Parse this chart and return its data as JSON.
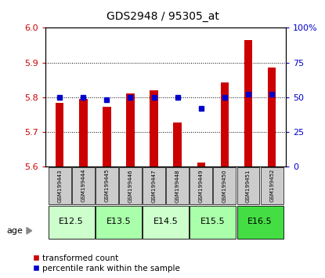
{
  "title": "GDS2948 / 95305_at",
  "samples": [
    "GSM199443",
    "GSM199444",
    "GSM199445",
    "GSM199446",
    "GSM199447",
    "GSM199448",
    "GSM199449",
    "GSM199450",
    "GSM199451",
    "GSM199452"
  ],
  "transformed_counts": [
    5.785,
    5.795,
    5.772,
    5.81,
    5.82,
    5.728,
    5.612,
    5.843,
    5.965,
    5.886
  ],
  "percentile_ranks": [
    50,
    50,
    48,
    50,
    50,
    50,
    42,
    50,
    52,
    52
  ],
  "age_groups": [
    {
      "label": "E12.5",
      "samples": [
        0,
        1
      ],
      "color": "#ccffcc"
    },
    {
      "label": "E13.5",
      "samples": [
        2,
        3
      ],
      "color": "#aaffaa"
    },
    {
      "label": "E14.5",
      "samples": [
        4,
        5
      ],
      "color": "#ccffcc"
    },
    {
      "label": "E15.5",
      "samples": [
        6,
        7
      ],
      "color": "#aaffaa"
    },
    {
      "label": "E16.5",
      "samples": [
        8,
        9
      ],
      "color": "#44dd44"
    }
  ],
  "ylim_left": [
    5.6,
    6.0
  ],
  "ylim_right": [
    0,
    100
  ],
  "yticks_left": [
    5.6,
    5.7,
    5.8,
    5.9,
    6.0
  ],
  "yticks_right": [
    0,
    25,
    50,
    75,
    100
  ],
  "ytick_right_labels": [
    "0",
    "25",
    "50",
    "75",
    "100%"
  ],
  "bar_color": "#cc0000",
  "marker_color": "#0000cc",
  "bar_bottom": 5.6,
  "background_color": "#ffffff",
  "sample_box_color": "#cccccc",
  "legend_items": [
    "transformed count",
    "percentile rank within the sample"
  ]
}
